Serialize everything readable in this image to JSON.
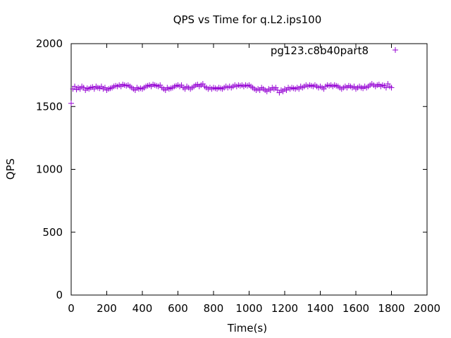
{
  "chart_data": {
    "type": "scatter",
    "title": "QPS vs Time for q.L2.ips100",
    "xlabel": "Time(s)",
    "ylabel": "QPS",
    "xlim": [
      0,
      2000
    ],
    "ylim": [
      0,
      2000
    ],
    "xticks": [
      0,
      200,
      400,
      600,
      800,
      1000,
      1200,
      1400,
      1600,
      1800,
      2000
    ],
    "yticks": [
      0,
      500,
      1000,
      1500,
      2000
    ],
    "grid": false,
    "legend_position": "top-right",
    "marker": "plus",
    "series": [
      {
        "name": "pg123.c8b40part8",
        "color": "#9400d3",
        "x": [
          0,
          10,
          20,
          30,
          40,
          50,
          60,
          70,
          80,
          90,
          100,
          110,
          120,
          130,
          140,
          150,
          160,
          170,
          180,
          190,
          200,
          210,
          220,
          230,
          240,
          250,
          260,
          270,
          280,
          290,
          300,
          310,
          320,
          330,
          340,
          350,
          360,
          370,
          380,
          390,
          400,
          410,
          420,
          430,
          440,
          450,
          460,
          470,
          480,
          490,
          500,
          510,
          520,
          530,
          540,
          550,
          560,
          570,
          580,
          590,
          600,
          610,
          620,
          630,
          640,
          650,
          660,
          670,
          680,
          690,
          700,
          710,
          720,
          730,
          740,
          750,
          760,
          770,
          780,
          790,
          800,
          810,
          820,
          830,
          840,
          850,
          860,
          870,
          880,
          890,
          900,
          910,
          920,
          930,
          940,
          950,
          960,
          970,
          980,
          990,
          1000,
          1010,
          1020,
          1030,
          1040,
          1050,
          1060,
          1070,
          1080,
          1090,
          1100,
          1110,
          1120,
          1130,
          1140,
          1150,
          1160,
          1170,
          1180,
          1190,
          1200,
          1210,
          1220,
          1230,
          1240,
          1250,
          1260,
          1270,
          1280,
          1290,
          1300,
          1310,
          1320,
          1330,
          1340,
          1350,
          1360,
          1370,
          1380,
          1390,
          1400,
          1410,
          1420,
          1430,
          1440,
          1450,
          1460,
          1470,
          1480,
          1490,
          1500,
          1510,
          1520,
          1530,
          1540,
          1550,
          1560,
          1570,
          1580,
          1590,
          1600,
          1610,
          1620,
          1630,
          1640,
          1650,
          1660,
          1670,
          1680,
          1690,
          1700,
          1710,
          1720,
          1730,
          1740,
          1750,
          1760,
          1770,
          1780,
          1790,
          1800
        ],
        "y": [
          1525,
          1640,
          1660,
          1635,
          1650,
          1640,
          1660,
          1650,
          1630,
          1645,
          1640,
          1650,
          1655,
          1640,
          1660,
          1650,
          1645,
          1660,
          1640,
          1650,
          1630,
          1640,
          1645,
          1650,
          1660,
          1665,
          1660,
          1670,
          1660,
          1675,
          1670,
          1665,
          1670,
          1660,
          1650,
          1640,
          1630,
          1650,
          1640,
          1645,
          1640,
          1650,
          1660,
          1665,
          1670,
          1660,
          1675,
          1670,
          1665,
          1660,
          1670,
          1650,
          1640,
          1630,
          1650,
          1640,
          1645,
          1650,
          1660,
          1665,
          1670,
          1660,
          1670,
          1650,
          1640,
          1660,
          1650,
          1640,
          1650,
          1660,
          1670,
          1675,
          1660,
          1670,
          1680,
          1660,
          1650,
          1640,
          1650,
          1640,
          1650,
          1645,
          1640,
          1650,
          1645,
          1640,
          1650,
          1660,
          1650,
          1660,
          1650,
          1660,
          1670,
          1660,
          1670,
          1665,
          1670,
          1660,
          1670,
          1665,
          1670,
          1660,
          1650,
          1640,
          1630,
          1640,
          1630,
          1650,
          1640,
          1630,
          1620,
          1640,
          1630,
          1650,
          1640,
          1650,
          1630,
          1610,
          1630,
          1620,
          1640,
          1630,
          1650,
          1640,
          1650,
          1645,
          1640,
          1650,
          1640,
          1660,
          1650,
          1660,
          1670,
          1660,
          1670,
          1665,
          1660,
          1670,
          1660,
          1650,
          1660,
          1650,
          1640,
          1660,
          1670,
          1665,
          1670,
          1660,
          1670,
          1665,
          1660,
          1650,
          1640,
          1650,
          1660,
          1650,
          1665,
          1660,
          1650,
          1660,
          1640,
          1650,
          1660,
          1650,
          1645,
          1660,
          1650,
          1660,
          1670,
          1680,
          1670,
          1660,
          1670,
          1675,
          1660,
          1670,
          1665,
          1650,
          1680,
          1660,
          1650
        ]
      }
    ]
  }
}
